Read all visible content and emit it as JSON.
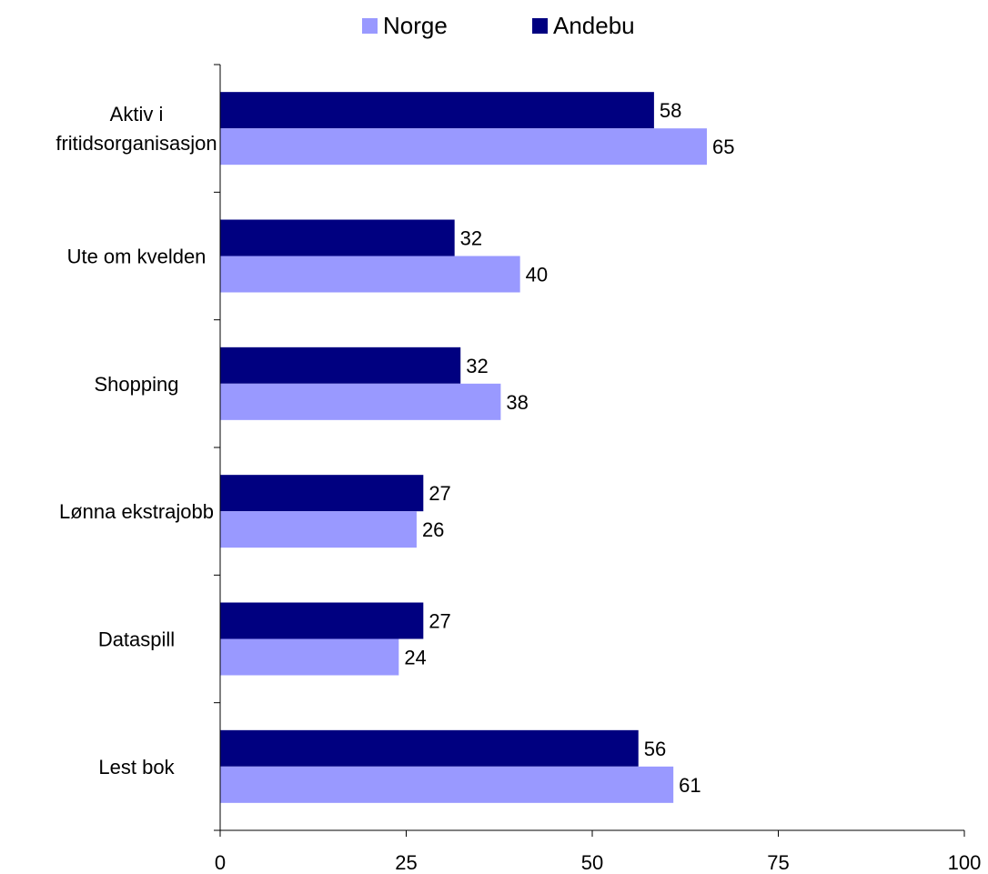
{
  "legend": {
    "norge_label": "Norge",
    "andebu_label": "Andebu"
  },
  "colors": {
    "norge": "#9999FF",
    "andebu": "#000080",
    "axis": "#000000"
  },
  "chart_data": {
    "type": "bar",
    "orientation": "horizontal",
    "categories": [
      "Aktiv i fritidsorganisasjon",
      "Ute om kvelden",
      "Shopping",
      "Lønna ekstrajobb",
      "Dataspill",
      "Lest bok"
    ],
    "category_lines": [
      [
        "Aktiv i",
        "fritidsorganisasjon"
      ],
      [
        "Ute om kvelden"
      ],
      [
        "Shopping"
      ],
      [
        "Lønna ekstrajobb"
      ],
      [
        "Dataspill"
      ],
      [
        "Lest bok"
      ]
    ],
    "series": [
      {
        "name": "Andebu",
        "values": [
          58,
          32,
          32,
          27,
          27,
          56
        ]
      },
      {
        "name": "Norge",
        "values": [
          65,
          40,
          38,
          26,
          24,
          61
        ]
      }
    ],
    "bar_lengths": {
      "Andebu": [
        58.3,
        31.5,
        32.3,
        27.3,
        27.3,
        56.2
      ],
      "Norge": [
        65.4,
        40.3,
        37.7,
        26.4,
        24.0,
        60.9
      ]
    },
    "xlim": [
      0,
      100
    ],
    "xticks": [
      "0",
      "25",
      "50",
      "75",
      "100"
    ],
    "title": "",
    "xlabel": "",
    "ylabel": "",
    "legend_position": "top",
    "grid": false
  }
}
